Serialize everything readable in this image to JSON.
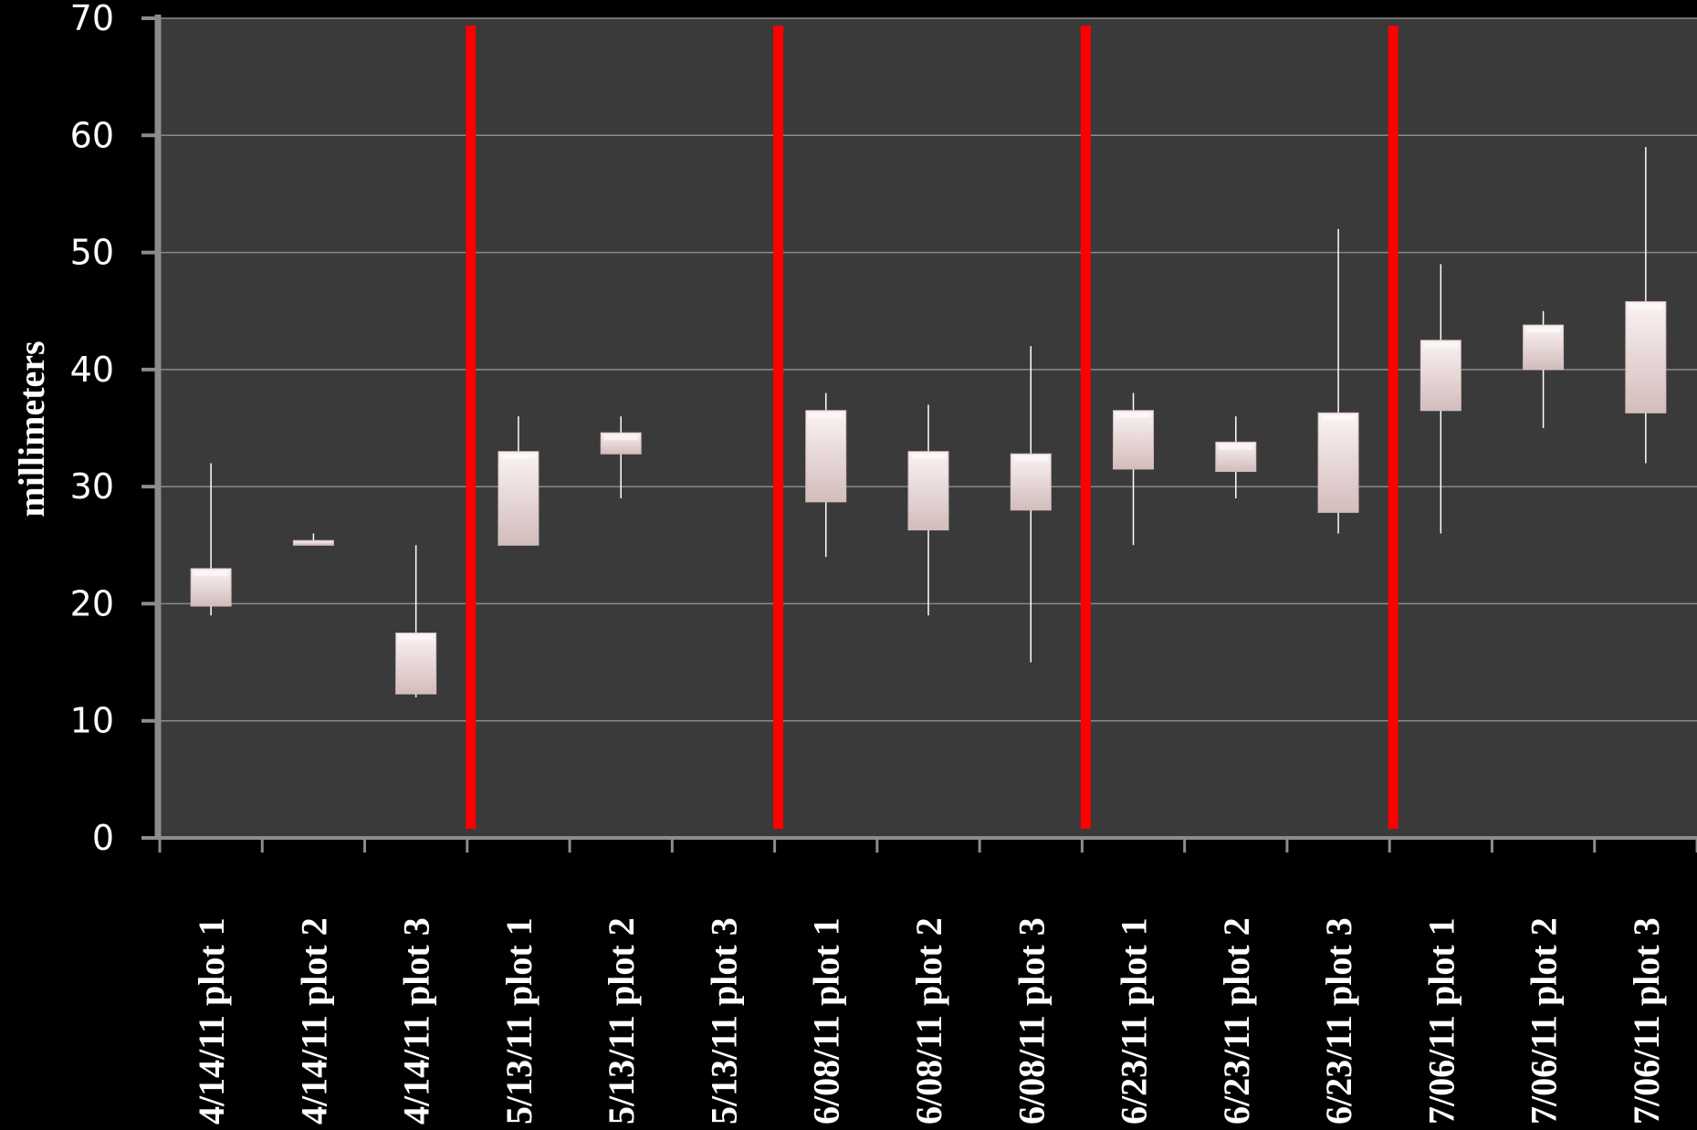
{
  "chart_data": {
    "type": "box",
    "ylabel": "millimeters",
    "ylim": [
      0,
      70
    ],
    "yticks": [
      "0",
      "10",
      "20",
      "30",
      "40",
      "50",
      "60",
      "70"
    ],
    "grid": true,
    "categories": [
      "4/14/11 plot 1",
      "4/14/11 plot 2",
      "4/14/11 plot 3",
      "5/13/11 plot 1",
      "5/13/11 plot 2",
      "5/13/11 plot 3",
      "6/08/11 plot 1",
      "6/08/11 plot 2",
      "6/08/11 plot 3",
      "6/23/11 plot 1",
      "6/23/11 plot 2",
      "6/23/11 plot 3",
      "7/06/11 plot 1",
      "7/06/11 plot 2",
      "7/06/11 plot 3"
    ],
    "boxes": [
      {
        "min": 19,
        "q1": 19.8,
        "q3": 23,
        "max": 32
      },
      {
        "min": 25,
        "q1": 25,
        "q3": 25.4,
        "max": 26
      },
      {
        "min": 12,
        "q1": 12.3,
        "q3": 17.5,
        "max": 25
      },
      {
        "min": 25,
        "q1": 25,
        "q3": 33,
        "max": 36
      },
      {
        "min": 29,
        "q1": 32.8,
        "q3": 34.6,
        "max": 36
      },
      null,
      {
        "min": 24,
        "q1": 28.7,
        "q3": 36.5,
        "max": 38
      },
      {
        "min": 19,
        "q1": 26.3,
        "q3": 33,
        "max": 37
      },
      {
        "min": 15,
        "q1": 28,
        "q3": 32.8,
        "max": 42
      },
      {
        "min": 25,
        "q1": 31.5,
        "q3": 36.5,
        "max": 38
      },
      {
        "min": 29,
        "q1": 31.3,
        "q3": 33.8,
        "max": 36
      },
      {
        "min": 26,
        "q1": 27.8,
        "q3": 36.3,
        "max": 52
      },
      {
        "min": 26,
        "q1": 36.5,
        "q3": 42.5,
        "max": 49
      },
      {
        "min": 35,
        "q1": 40,
        "q3": 43.8,
        "max": 45
      },
      {
        "min": 32,
        "q1": 36.3,
        "q3": 45.8,
        "max": 59
      }
    ],
    "separators_after_index": [
      2,
      5,
      8,
      11
    ],
    "colors": {
      "plot_bg": "#3a3a3a",
      "grid": "#8a8a8a",
      "separator": "#ff0000",
      "box_light": "#fbf3f3",
      "box_dark": "#d3bcbc",
      "whisker": "#ffffff",
      "axis": "#8c8c8c"
    }
  }
}
